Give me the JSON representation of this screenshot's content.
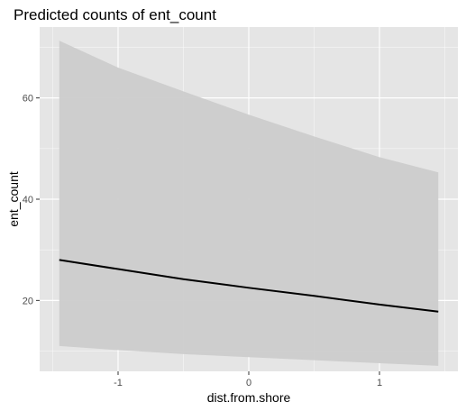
{
  "chart_data": {
    "type": "line",
    "title": "Predicted counts of ent_count",
    "xlabel": "dist.from.shore",
    "ylabel": "ent_count",
    "xlim": [
      -1.6,
      1.6
    ],
    "ylim": [
      6,
      74
    ],
    "x_ticks": [
      -1,
      0,
      1
    ],
    "x_tick_labels": [
      "-1",
      "0",
      "1"
    ],
    "y_ticks": [
      20,
      40,
      60
    ],
    "y_tick_labels": [
      "20",
      "40",
      "60"
    ],
    "grid": true,
    "series": [
      {
        "x": [
          -1.45,
          -1.0,
          -0.5,
          0.0,
          0.5,
          1.0,
          1.45
        ],
        "y": [
          28.0,
          26.2,
          24.2,
          22.5,
          20.9,
          19.2,
          17.8
        ],
        "color": "#000000"
      }
    ],
    "confidence_band": {
      "x": [
        -1.45,
        -1.0,
        -0.5,
        0.0,
        0.5,
        1.0,
        1.45
      ],
      "lower": [
        11.0,
        10.2,
        9.4,
        8.8,
        8.2,
        7.6,
        7.1
      ],
      "upper": [
        71.3,
        66.0,
        61.3,
        56.7,
        52.4,
        48.3,
        45.3
      ],
      "color": "#cccccc"
    },
    "panel_background": "#e5e5e5",
    "grid_color": "#ffffff"
  }
}
